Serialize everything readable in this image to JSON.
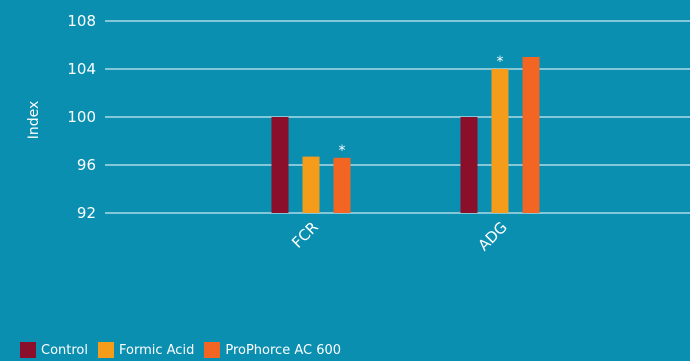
{
  "chart_data": {
    "type": "bar",
    "ylabel": "Index",
    "ylim": [
      92,
      108
    ],
    "yticks": [
      92,
      96,
      100,
      104,
      108
    ],
    "categories": [
      "FCR",
      "ADG"
    ],
    "series": [
      {
        "name": "Control",
        "color": "#8b0e2a",
        "values": [
          100,
          100
        ]
      },
      {
        "name": "Formic Acid",
        "color": "#f59c1a",
        "values": [
          96.7,
          104
        ]
      },
      {
        "name": "ProPhorce AC 600",
        "color": "#f26522",
        "values": [
          96.6,
          105
        ]
      }
    ],
    "annotations": [
      {
        "category": "FCR",
        "series": "ProPhorce AC 600",
        "text": "*"
      },
      {
        "category": "ADG",
        "series": "Formic Acid",
        "text": "*"
      }
    ],
    "grid": true,
    "legend_position": "bottom-left"
  },
  "colors": {
    "background": "#0a8fb1",
    "gridline": "#ffffff",
    "text": "#ffffff"
  }
}
